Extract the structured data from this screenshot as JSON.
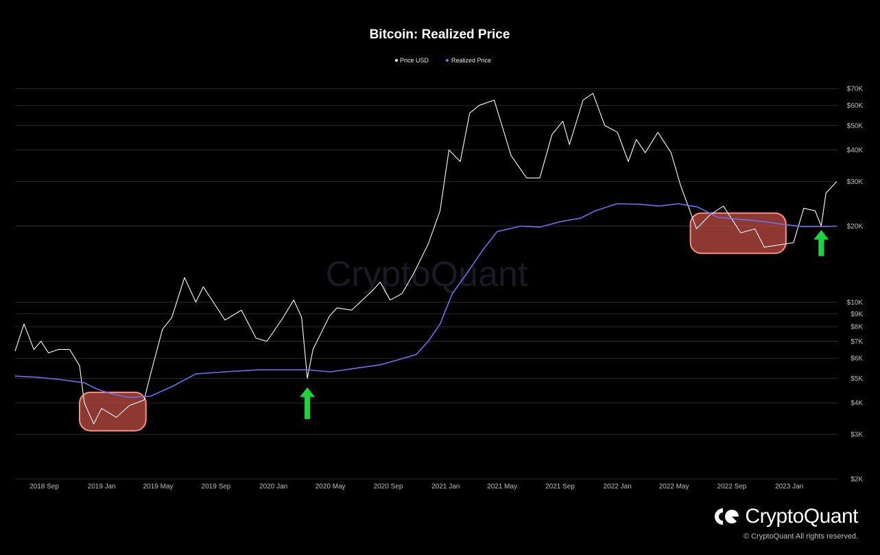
{
  "chart_data": {
    "type": "line",
    "title": "Bitcoin: Realized Price",
    "legend": [
      "Price USD",
      "Realized Price"
    ],
    "legend_position": "top-center",
    "y_scale": "log",
    "y_ticks": [
      "$2K",
      "$3K",
      "$4K",
      "$5K",
      "$6K",
      "$7K",
      "$8K",
      "$9K",
      "$10K",
      "$20K",
      "$30K",
      "$40K",
      "$50K",
      "$60K",
      "$70K"
    ],
    "x_ticks": [
      "2018 Sep",
      "2019 Jan",
      "2019 May",
      "2019 Sep",
      "2020 Jan",
      "2020 May",
      "2020 Sep",
      "2021 Jan",
      "2021 May",
      "2021 Sep",
      "2022 Jan",
      "2022 May",
      "2022 Sep",
      "2023 Jan"
    ],
    "xlim": [
      "2018-07-01",
      "2023-04-15"
    ],
    "ylim": [
      2000,
      75000
    ],
    "colors": {
      "price": "#ffffff",
      "realized": "#6f6ff0",
      "highlight_fill": "#b5483f",
      "highlight_stroke": "#ff8f80",
      "arrow": "#19d63b"
    },
    "series": [
      {
        "name": "Price USD",
        "x": [
          "2018-07-01",
          "2018-07-20",
          "2018-08-10",
          "2018-08-25",
          "2018-09-10",
          "2018-10-01",
          "2018-10-25",
          "2018-11-15",
          "2018-11-25",
          "2018-12-15",
          "2019-01-01",
          "2019-02-01",
          "2019-03-01",
          "2019-04-01",
          "2019-04-15",
          "2019-05-10",
          "2019-05-30",
          "2019-06-26",
          "2019-07-20",
          "2019-08-05",
          "2019-09-20",
          "2019-10-25",
          "2019-11-25",
          "2019-12-18",
          "2020-01-20",
          "2020-02-13",
          "2020-03-01",
          "2020-03-13",
          "2020-03-25",
          "2020-04-29",
          "2020-05-15",
          "2020-06-15",
          "2020-07-27",
          "2020-08-15",
          "2020-09-05",
          "2020-09-30",
          "2020-10-25",
          "2020-11-25",
          "2020-12-20",
          "2021-01-08",
          "2021-02-01",
          "2021-02-21",
          "2021-03-13",
          "2021-04-14",
          "2021-05-20",
          "2021-06-22",
          "2021-07-20",
          "2021-08-15",
          "2021-09-07",
          "2021-09-21",
          "2021-10-20",
          "2021-11-10",
          "2021-12-05",
          "2022-01-01",
          "2022-01-24",
          "2022-02-10",
          "2022-03-01",
          "2022-03-28",
          "2022-04-25",
          "2022-05-15",
          "2022-06-18",
          "2022-07-15",
          "2022-08-14",
          "2022-09-20",
          "2022-10-20",
          "2022-11-09",
          "2022-12-15",
          "2023-01-10",
          "2023-02-01",
          "2023-02-25",
          "2023-03-10",
          "2023-03-20",
          "2023-04-12"
        ],
        "y": [
          6400,
          8200,
          6500,
          7000,
          6300,
          6500,
          6500,
          5600,
          4000,
          3300,
          3800,
          3500,
          3900,
          4100,
          5200,
          7800,
          8700,
          12500,
          10000,
          11500,
          8500,
          9300,
          7200,
          7000,
          8600,
          10200,
          8700,
          5000,
          6500,
          8800,
          9500,
          9300,
          11000,
          12000,
          10200,
          10800,
          13000,
          17000,
          23000,
          40000,
          36000,
          56000,
          60000,
          63000,
          38000,
          31000,
          31000,
          46000,
          52000,
          42000,
          63000,
          67000,
          50000,
          47000,
          36000,
          44000,
          39000,
          47000,
          39000,
          29000,
          19500,
          22000,
          24000,
          18800,
          19500,
          16500,
          16900,
          17200,
          23500,
          23000,
          20000,
          27000,
          30000
        ]
      },
      {
        "name": "Realized Price",
        "x": [
          "2018-07-01",
          "2018-08-15",
          "2018-10-01",
          "2018-11-25",
          "2018-12-20",
          "2019-01-20",
          "2019-03-01",
          "2019-04-15",
          "2019-06-01",
          "2019-07-20",
          "2019-09-20",
          "2019-12-01",
          "2020-01-20",
          "2020-03-13",
          "2020-05-01",
          "2020-07-01",
          "2020-08-15",
          "2020-09-20",
          "2020-10-30",
          "2020-11-25",
          "2020-12-20",
          "2021-01-15",
          "2021-02-15",
          "2021-03-20",
          "2021-04-20",
          "2021-06-10",
          "2021-07-20",
          "2021-09-01",
          "2021-10-15",
          "2021-11-15",
          "2021-12-31",
          "2022-02-15",
          "2022-03-31",
          "2022-05-10",
          "2022-06-20",
          "2022-08-01",
          "2022-09-15",
          "2022-11-10",
          "2022-12-20",
          "2023-01-31",
          "2023-03-15",
          "2023-04-12"
        ],
        "y": [
          5100,
          5050,
          4950,
          4800,
          4550,
          4350,
          4200,
          4250,
          4650,
          5200,
          5300,
          5400,
          5400,
          5400,
          5300,
          5500,
          5650,
          5900,
          6200,
          7000,
          8200,
          10800,
          13000,
          16000,
          19000,
          20000,
          19800,
          20800,
          21500,
          23000,
          24500,
          24400,
          24000,
          24500,
          23800,
          21700,
          21300,
          20800,
          20300,
          19900,
          19900,
          20000
        ]
      }
    ],
    "annotations": {
      "highlight_boxes": [
        {
          "x0": "2018-11-15",
          "x1": "2019-04-05",
          "y0": 3100,
          "y1": 4400
        },
        {
          "x0": "2022-06-05",
          "x1": "2022-12-25",
          "y0": 15600,
          "y1": 22500
        }
      ],
      "arrows": [
        {
          "x": "2020-03-13",
          "y_tip": 4600,
          "y_tail": 3450
        },
        {
          "x": "2023-03-10",
          "y_tip": 19300,
          "y_tail": 15200
        }
      ]
    }
  },
  "watermark": "CryptoQuant",
  "brand": {
    "name": "CryptoQuant",
    "copyright": "© CryptoQuant All rights reserved."
  }
}
